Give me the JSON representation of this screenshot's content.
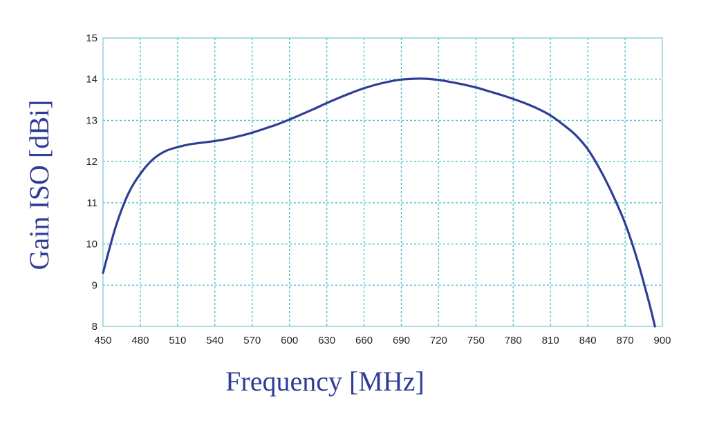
{
  "chart_data": {
    "type": "line",
    "title": "",
    "xlabel": "Frequency [MHz]",
    "ylabel": "Gain ISO [dBi]",
    "xlim": [
      450,
      900
    ],
    "ylim": [
      8,
      15
    ],
    "x_ticks": [
      "450",
      "480",
      "510",
      "540",
      "570",
      "600",
      "630",
      "660",
      "690",
      "720",
      "750",
      "780",
      "810",
      "840",
      "870",
      "900"
    ],
    "y_ticks": [
      "8",
      "9",
      "10",
      "11",
      "12",
      "13",
      "14",
      "15"
    ],
    "grid": true,
    "legend": "none",
    "colors": {
      "line": "#2f3d96",
      "grid": "#3fbccc",
      "frame": "#8fd0d8",
      "label": "#2f3d96"
    },
    "series": [
      {
        "x": [
          450,
          460,
          470,
          480,
          490,
          500,
          510,
          520,
          530,
          540,
          550,
          560,
          570,
          580,
          590,
          600,
          610,
          620,
          630,
          640,
          650,
          660,
          670,
          680,
          690,
          700,
          710,
          720,
          730,
          740,
          750,
          760,
          770,
          780,
          790,
          800,
          810,
          820,
          830,
          840,
          850,
          860,
          870,
          880,
          890,
          894
        ],
        "y": [
          9.3,
          10.4,
          11.2,
          11.7,
          12.05,
          12.25,
          12.35,
          12.42,
          12.46,
          12.5,
          12.55,
          12.62,
          12.7,
          12.8,
          12.9,
          13.02,
          13.15,
          13.28,
          13.42,
          13.55,
          13.67,
          13.78,
          13.87,
          13.94,
          13.99,
          14.01,
          14.01,
          13.98,
          13.93,
          13.87,
          13.8,
          13.71,
          13.62,
          13.52,
          13.41,
          13.28,
          13.12,
          12.9,
          12.65,
          12.3,
          11.8,
          11.2,
          10.5,
          9.6,
          8.5,
          8.0
        ]
      }
    ]
  }
}
